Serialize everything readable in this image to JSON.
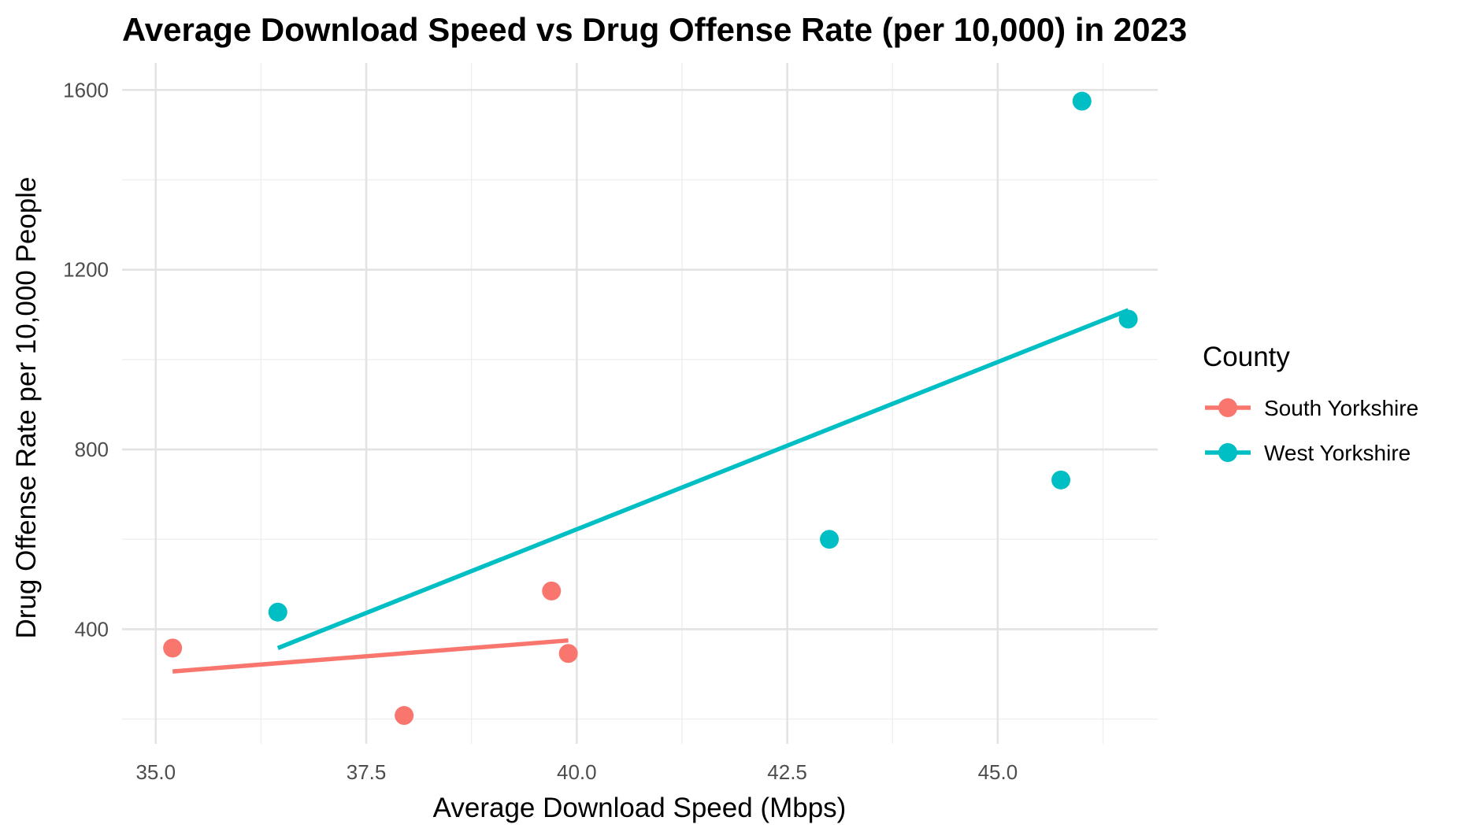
{
  "chart_data": {
    "type": "scatter",
    "title": "Average Download Speed vs Drug Offense Rate (per 10,000) in 2023",
    "xlabel": "Average Download Speed (Mbps)",
    "ylabel": "Drug Offense Rate per 10,000 People",
    "xlim": [
      34.6,
      46.9
    ],
    "ylim": [
      145,
      1660
    ],
    "x_ticks": [
      35.0,
      37.5,
      40.0,
      42.5,
      45.0
    ],
    "x_tick_labels": [
      "35.0",
      "37.5",
      "40.0",
      "42.5",
      "45.0"
    ],
    "y_ticks": [
      400,
      800,
      1200,
      1600
    ],
    "y_tick_labels": [
      "400",
      "800",
      "1200",
      "1600"
    ],
    "grid": true,
    "legend": {
      "title": "County",
      "position": "right"
    },
    "series": [
      {
        "name": "South Yorkshire",
        "color": "#F8766D",
        "points": [
          {
            "x": 35.2,
            "y": 358
          },
          {
            "x": 37.95,
            "y": 208
          },
          {
            "x": 39.7,
            "y": 485
          },
          {
            "x": 39.9,
            "y": 346
          }
        ],
        "trend": [
          {
            "x": 35.2,
            "y": 306
          },
          {
            "x": 39.9,
            "y": 375
          }
        ]
      },
      {
        "name": "West Yorkshire",
        "color": "#00BFC4",
        "points": [
          {
            "x": 36.45,
            "y": 438
          },
          {
            "x": 43.0,
            "y": 600
          },
          {
            "x": 45.75,
            "y": 732
          },
          {
            "x": 46.0,
            "y": 1575
          },
          {
            "x": 46.55,
            "y": 1090
          }
        ],
        "trend": [
          {
            "x": 36.45,
            "y": 358
          },
          {
            "x": 46.55,
            "y": 1110
          }
        ]
      }
    ]
  }
}
